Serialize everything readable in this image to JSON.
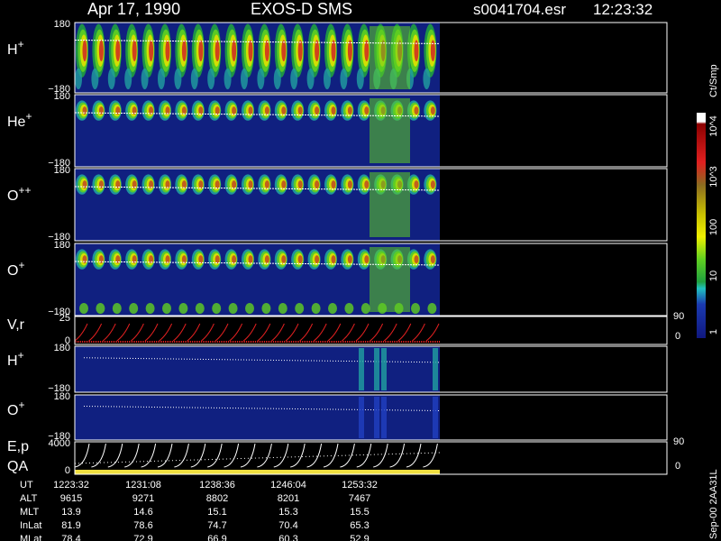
{
  "header": {
    "date": "Apr 17, 1990",
    "instrument": "EXOS-D SMS",
    "file": "s0041704.esr",
    "time": "12:23:32"
  },
  "panels": [
    {
      "label": "H",
      "sup": "+",
      "y_top": "180",
      "y_bottom": "−180"
    },
    {
      "label": "He",
      "sup": "+",
      "y_top": "180",
      "y_bottom": "−180"
    },
    {
      "label": "O",
      "sup": "++",
      "y_top": "180",
      "y_bottom": "−180"
    },
    {
      "label": "O",
      "sup": "+",
      "y_top": "180",
      "y_bottom": "−180"
    },
    {
      "label": "V,r",
      "y_top": "25",
      "y_bottom": "0",
      "right_top": "90",
      "right_bottom": "0"
    },
    {
      "label": "H",
      "sup": "+",
      "y_top": "180",
      "y_bottom": "−180"
    },
    {
      "label": "O",
      "sup": "+",
      "y_top": "180",
      "y_bottom": "−180"
    },
    {
      "label": "E,p",
      "label2": "QA",
      "y_top": "4000",
      "y_bottom": "0",
      "right_top": "90",
      "right_bottom": "0"
    }
  ],
  "colorbar": {
    "unit": "Ct/Smp",
    "labels": [
      "10^4",
      "10^3",
      "100",
      "10",
      "1"
    ]
  },
  "footer": {
    "rows": [
      {
        "label": "UT",
        "values": [
          "1223:32",
          "1231:08",
          "1238:36",
          "1246:04",
          "1253:32"
        ]
      },
      {
        "label": "ALT",
        "values": [
          "9615",
          "9271",
          "8802",
          "8201",
          "7467"
        ]
      },
      {
        "label": "MLT",
        "values": [
          "13.9",
          "14.6",
          "15.1",
          "15.3",
          "15.5"
        ]
      },
      {
        "label": "InLat",
        "values": [
          "81.9",
          "78.6",
          "74.7",
          "70.4",
          "65.3"
        ]
      },
      {
        "label": "MLat",
        "values": [
          "78.4",
          "72.9",
          "66.9",
          "60.3",
          "52.9"
        ]
      }
    ]
  },
  "side_note": "Sep-00  2AA31L"
}
